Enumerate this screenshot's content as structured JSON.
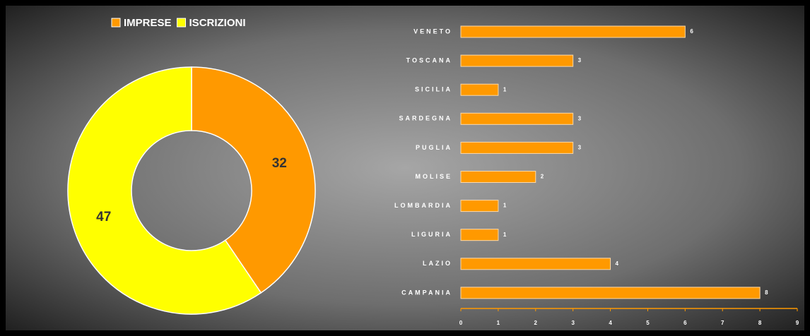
{
  "chart_data": [
    {
      "type": "donut",
      "categories": [
        "IMPRESE",
        "ISCRIZIONI"
      ],
      "values": [
        32,
        47
      ],
      "colors": [
        "#ff9900",
        "#ffff00"
      ],
      "legend": "top"
    },
    {
      "type": "hbar",
      "categories": [
        "CAMPANIA",
        "LAZIO",
        "LIGURIA",
        "LOMBARDIA",
        "MOLISE",
        "PUGLIA",
        "SARDEGNA",
        "SICILIA",
        "TOSCANA",
        "VENETO"
      ],
      "values": [
        8,
        4,
        1,
        1,
        2,
        3,
        3,
        1,
        3,
        6
      ],
      "color": "#ff9900",
      "xlim": [
        0,
        9
      ],
      "xticks": [
        0,
        1,
        2,
        3,
        4,
        5,
        6,
        7,
        8,
        9
      ]
    }
  ]
}
